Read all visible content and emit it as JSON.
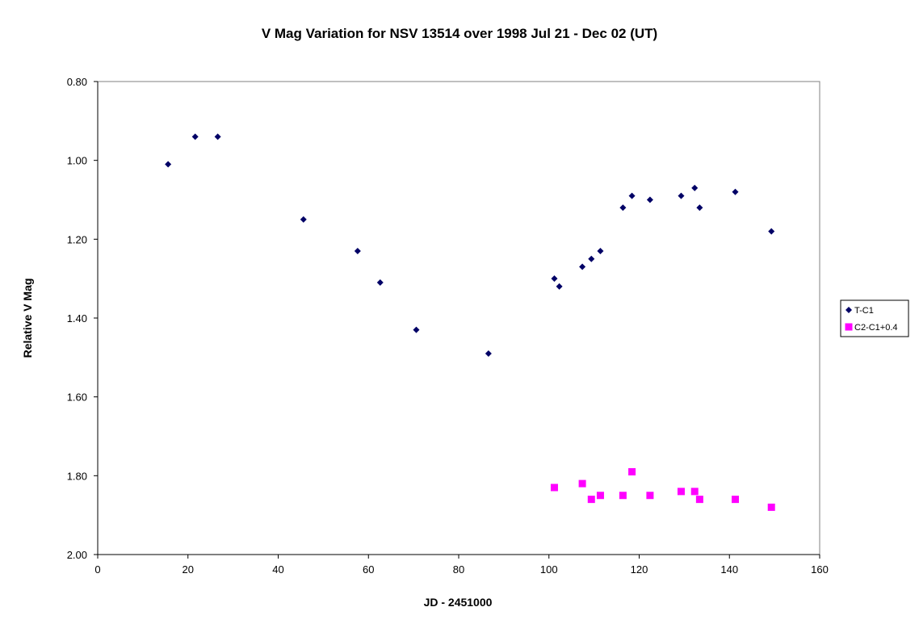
{
  "chart_data": {
    "type": "scatter",
    "title": "V Mag Variation for NSV 13514 over 1998 Jul 21 - Dec 02 (UT)",
    "xlabel": "JD - 2451000",
    "ylabel": "Relative V Mag",
    "xlim": [
      0,
      160
    ],
    "ylim": [
      0.8,
      2.0
    ],
    "y_inverted": true,
    "x_ticks": [
      0,
      20,
      40,
      60,
      80,
      100,
      120,
      140,
      160
    ],
    "x_tick_labels": [
      "0",
      "20",
      "40",
      "60",
      "80",
      "100",
      "120",
      "140",
      "160"
    ],
    "y_ticks": [
      0.8,
      1.0,
      1.2,
      1.4,
      1.6,
      1.8,
      2.0
    ],
    "y_tick_labels": [
      "0.80",
      "1.00",
      "1.20",
      "1.40",
      "1.60",
      "1.80",
      "2.00"
    ],
    "grid": false,
    "legend_position": "right",
    "series": [
      {
        "name": "T-C1",
        "marker": "diamond",
        "color": "#000066",
        "x": [
          15.6,
          21.6,
          26.6,
          45.6,
          57.6,
          62.6,
          70.6,
          86.6,
          101.2,
          102.3,
          107.4,
          109.4,
          111.4,
          116.4,
          118.4,
          122.4,
          129.3,
          132.3,
          133.4,
          141.3,
          149.3
        ],
        "y": [
          1.01,
          0.94,
          0.94,
          1.15,
          1.23,
          1.31,
          1.43,
          1.49,
          1.3,
          1.32,
          1.27,
          1.25,
          1.23,
          1.12,
          1.09,
          1.1,
          1.09,
          1.07,
          1.12,
          1.08,
          1.18
        ]
      },
      {
        "name": "C2-C1+0.4",
        "marker": "square",
        "color": "#ff00ff",
        "x": [
          101.2,
          107.4,
          109.4,
          111.4,
          116.4,
          118.4,
          122.4,
          129.3,
          132.3,
          133.4,
          141.3,
          149.3
        ],
        "y": [
          1.83,
          1.82,
          1.86,
          1.85,
          1.85,
          1.79,
          1.85,
          1.84,
          1.84,
          1.86,
          1.86,
          1.88
        ]
      }
    ]
  }
}
